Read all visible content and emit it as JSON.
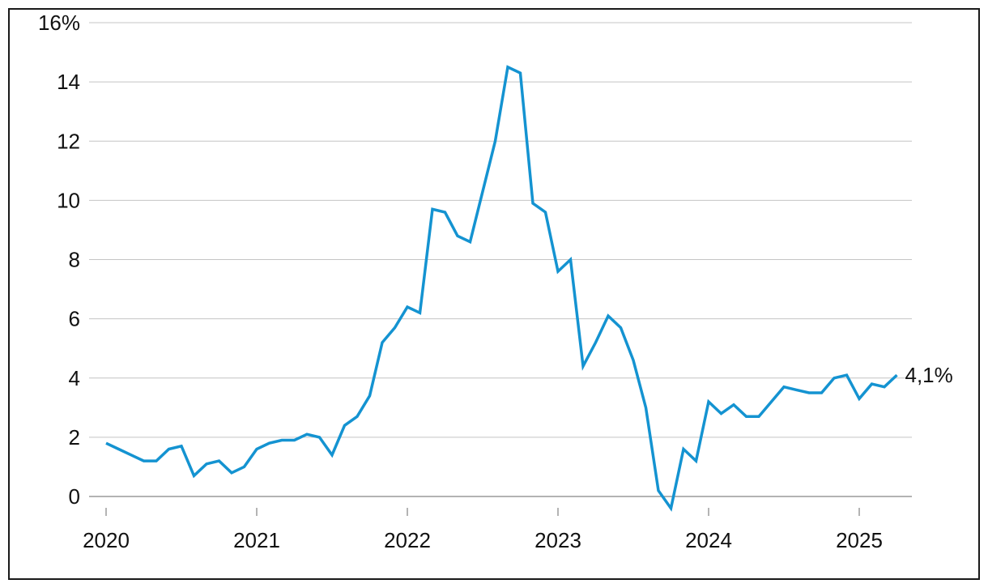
{
  "chart_data": {
    "type": "line",
    "title": "",
    "xlabel": "",
    "ylabel": "",
    "y_tick_labels": [
      "16%",
      "14",
      "12",
      "10",
      "8",
      "6",
      "4",
      "2",
      "0"
    ],
    "y_ticks": [
      16,
      14,
      12,
      10,
      8,
      6,
      4,
      2,
      0
    ],
    "ylim": [
      -0.4,
      16
    ],
    "x_tick_labels": [
      "2020",
      "2021",
      "2022",
      "2023",
      "2024",
      "2025"
    ],
    "x_ticks": [
      "2020-01",
      "2021-01",
      "2022-01",
      "2023-01",
      "2024-01",
      "2025-01"
    ],
    "xlim": [
      "2020-01",
      "2025-04"
    ],
    "grid": true,
    "line_color": "#1493d1",
    "end_label": "4,1%",
    "series": [
      {
        "x": [
          "2020-01",
          "2020-02",
          "2020-03",
          "2020-04",
          "2020-05",
          "2020-06",
          "2020-07",
          "2020-08",
          "2020-09",
          "2020-10",
          "2020-11",
          "2020-12",
          "2021-01",
          "2021-02",
          "2021-03",
          "2021-04",
          "2021-05",
          "2021-06",
          "2021-07",
          "2021-08",
          "2021-09",
          "2021-10",
          "2021-11",
          "2021-12",
          "2022-01",
          "2022-02",
          "2022-03",
          "2022-04",
          "2022-05",
          "2022-06",
          "2022-07",
          "2022-08",
          "2022-09",
          "2022-10",
          "2022-11",
          "2022-12",
          "2023-01",
          "2023-02",
          "2023-03",
          "2023-04",
          "2023-05",
          "2023-06",
          "2023-07",
          "2023-08",
          "2023-09",
          "2023-10",
          "2023-11",
          "2023-12",
          "2024-01",
          "2024-02",
          "2024-03",
          "2024-04",
          "2024-05",
          "2024-06",
          "2024-07",
          "2024-08",
          "2024-09",
          "2024-10",
          "2024-11",
          "2024-12",
          "2025-01",
          "2025-02",
          "2025-03",
          "2025-04"
        ],
        "values": [
          1.8,
          1.6,
          1.4,
          1.2,
          1.2,
          1.6,
          1.7,
          0.7,
          1.1,
          1.2,
          0.8,
          1.0,
          1.6,
          1.8,
          1.9,
          1.9,
          2.1,
          2.0,
          1.4,
          2.4,
          2.7,
          3.4,
          5.2,
          5.7,
          6.4,
          6.2,
          9.7,
          9.6,
          8.8,
          8.6,
          10.3,
          12.0,
          14.5,
          14.3,
          9.9,
          9.6,
          7.6,
          8.0,
          4.4,
          5.2,
          6.1,
          5.7,
          4.6,
          3.0,
          0.2,
          -0.4,
          1.6,
          1.2,
          3.2,
          2.8,
          3.1,
          2.7,
          2.7,
          3.2,
          3.7,
          3.6,
          3.5,
          3.5,
          4.0,
          4.1,
          3.3,
          3.8,
          3.7,
          4.1
        ]
      }
    ]
  }
}
